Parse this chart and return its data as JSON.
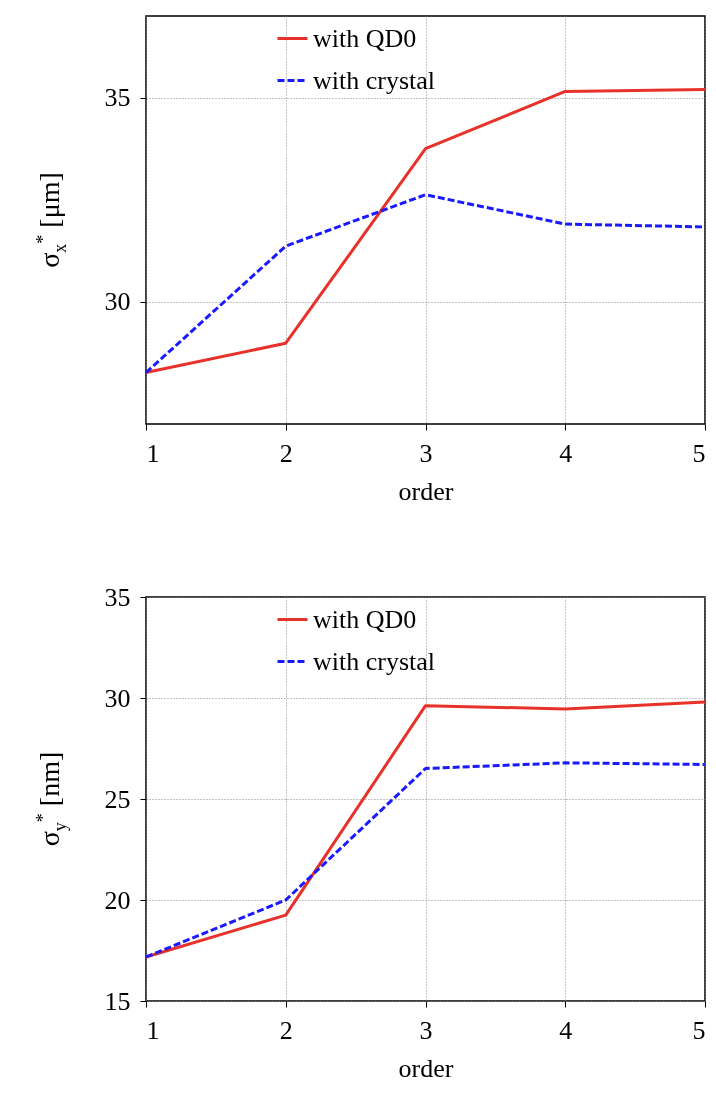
{
  "chart_data": [
    {
      "type": "line",
      "xlabel": "order",
      "ylabel": "σ$_{x}$$^{*}$ [μm]",
      "x": [
        1,
        2,
        3,
        4,
        5
      ],
      "xlim": [
        1,
        5
      ],
      "xticks": [
        1,
        2,
        3,
        4,
        5
      ],
      "ylim": [
        27,
        37
      ],
      "yticks": [
        30,
        35
      ],
      "grid": true,
      "legend": "top",
      "series": [
        {
          "name": "with QD0",
          "color": "#e8312a",
          "line_style": "solid",
          "values": [
            28.26,
            28.98,
            33.75,
            35.15,
            35.2
          ]
        },
        {
          "name": "with crystal",
          "color": "#1a1aff",
          "line_style": "dashed",
          "values": [
            28.26,
            31.36,
            32.62,
            31.9,
            31.83
          ]
        }
      ]
    },
    {
      "type": "line",
      "xlabel": "order",
      "ylabel": "σ$_{y}$$^{*}$ [nm]",
      "x": [
        1,
        2,
        3,
        4,
        5
      ],
      "xlim": [
        1,
        5
      ],
      "xticks": [
        1,
        2,
        3,
        4,
        5
      ],
      "ylim": [
        15,
        35
      ],
      "yticks": [
        15,
        20,
        25,
        30,
        35
      ],
      "grid": true,
      "legend": "top",
      "series": [
        {
          "name": "with QD0",
          "color": "#e8312a",
          "line_style": "solid",
          "values": [
            17.18,
            19.25,
            29.62,
            29.46,
            29.8
          ]
        },
        {
          "name": "with crystal",
          "color": "#1a1aff",
          "line_style": "dashed",
          "values": [
            17.18,
            20.0,
            26.51,
            26.79,
            26.71
          ]
        }
      ]
    }
  ]
}
